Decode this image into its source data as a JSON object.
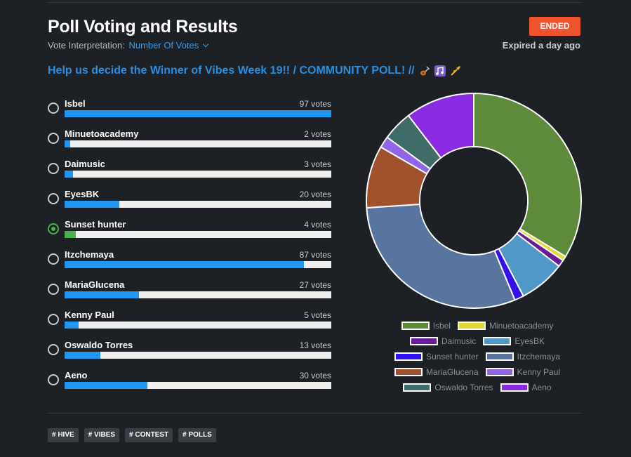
{
  "header": {
    "title": "Poll Voting and Results",
    "interpretation_label": "Vote Interpretation:",
    "interpretation_value": "Number Of Votes",
    "status_badge": "ENDED",
    "expired_text": "Expired a day ago"
  },
  "question": "Help us decide the Winner of Vibes Week 19!! / COMMUNITY POLL! //",
  "options": [
    {
      "name": "Isbel",
      "votes_label": "97 votes",
      "votes": 97,
      "selected": false
    },
    {
      "name": "Minuetoacademy",
      "votes_label": "2 votes",
      "votes": 2,
      "selected": false
    },
    {
      "name": "Daimusic",
      "votes_label": "3 votes",
      "votes": 3,
      "selected": false
    },
    {
      "name": "EyesBK",
      "votes_label": "20 votes",
      "votes": 20,
      "selected": false
    },
    {
      "name": "Sunset hunter",
      "votes_label": "4 votes",
      "votes": 4,
      "selected": true
    },
    {
      "name": "Itzchemaya",
      "votes_label": "87 votes",
      "votes": 87,
      "selected": false
    },
    {
      "name": "MariaGlucena",
      "votes_label": "27 votes",
      "votes": 27,
      "selected": false
    },
    {
      "name": "Kenny Paul",
      "votes_label": "5 votes",
      "votes": 5,
      "selected": false
    },
    {
      "name": "Oswaldo Torres",
      "votes_label": "13 votes",
      "votes": 13,
      "selected": false
    },
    {
      "name": "Aeno",
      "votes_label": "30 votes",
      "votes": 30,
      "selected": false
    }
  ],
  "chart_data": {
    "type": "pie",
    "style": "doughnut",
    "categories": [
      "Isbel",
      "Minuetoacademy",
      "Daimusic",
      "EyesBK",
      "Sunset hunter",
      "Itzchemaya",
      "MariaGlucena",
      "Kenny Paul",
      "Oswaldo Torres",
      "Aeno"
    ],
    "values": [
      97,
      2,
      3,
      20,
      4,
      87,
      27,
      5,
      13,
      30
    ],
    "colors": [
      "#5e8a3c",
      "#e5d930",
      "#6a1b9a",
      "#4f98c8",
      "#3311ee",
      "#5a74a0",
      "#a0522d",
      "#9066e6",
      "#3f6b68",
      "#8a2be2"
    ],
    "legend_position": "bottom"
  },
  "legend_rows": [
    [
      0,
      1
    ],
    [
      2,
      3
    ],
    [
      4,
      5
    ],
    [
      6,
      7
    ],
    [
      8,
      9
    ]
  ],
  "tags": [
    "# HIVE",
    "# VIBES",
    "# CONTEST",
    "# POLLS"
  ],
  "colors": {
    "accent": "#2b8fe0",
    "bar": "#2196f3",
    "selected": "#4caf50",
    "badge": "#f0542d",
    "background": "#1d2025"
  }
}
